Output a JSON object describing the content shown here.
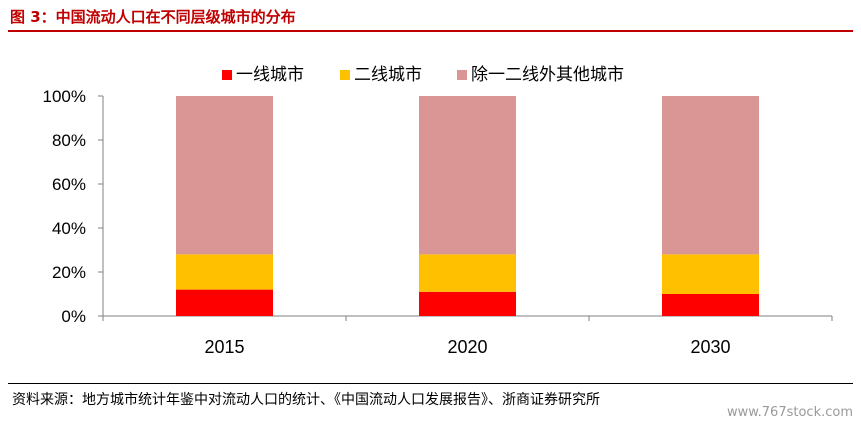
{
  "figure_title": "图 3：中国流动人口在不同层级城市的分布",
  "source_note": "资料来源：地方城市统计年鉴中对流动人口的统计、《中国流动人口发展报告》、浙商证券研究所",
  "watermark": "www.767stock.com",
  "colors": {
    "title": "#c00000",
    "tier1": "#ff0000",
    "tier2": "#ffc000",
    "other": "#d99694",
    "axis": "#808080"
  },
  "chart_data": {
    "type": "bar",
    "stacked": true,
    "percent": true,
    "categories": [
      "2015",
      "2020",
      "2030"
    ],
    "series": [
      {
        "name": "一线城市",
        "color": "#ff0000",
        "values": [
          12,
          11,
          10
        ]
      },
      {
        "name": "二线城市",
        "color": "#ffc000",
        "values": [
          16,
          17,
          18
        ]
      },
      {
        "name": "除一二线外其他城市",
        "color": "#d99694",
        "values": [
          72,
          72,
          72
        ]
      }
    ],
    "ylim": [
      0,
      100
    ],
    "yticks": [
      "0%",
      "20%",
      "40%",
      "60%",
      "80%",
      "100%"
    ],
    "grid": false,
    "legend": "top-center"
  }
}
